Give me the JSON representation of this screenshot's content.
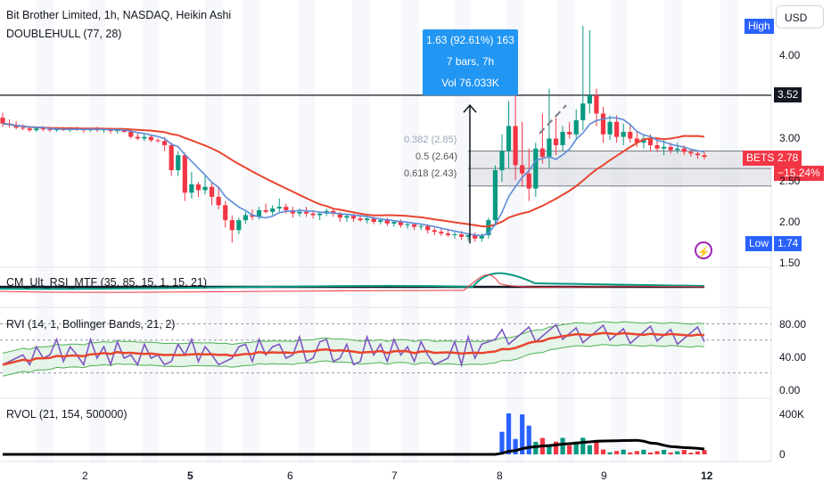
{
  "header": {
    "title": "Bit Brother Limited, 1h, NASDAQ, Heikin Ashi",
    "indicator": "DOUBLEHULL (77, 28)",
    "currency": "USD"
  },
  "price_axis": {
    "ticks": [
      "4.00",
      "3.00",
      "2.50",
      "2.00",
      "1.50"
    ],
    "high_label": "High",
    "low_label": "Low",
    "low_value": "1.74",
    "level_value": "3.52",
    "symbol_tag": "BETS",
    "last_price": "2.78",
    "change_pct": "−15.24%"
  },
  "measure_tooltip": {
    "line1": "1.63 (92.61%) 163",
    "line2": "7 bars, 7h",
    "line3": "Vol 76.033K"
  },
  "fibonacci": {
    "levels": [
      "0.382 (2.85)",
      "0.5 (2.64)",
      "0.618 (2.43)"
    ]
  },
  "panes": {
    "cm": "CM_Ult_RSI_MTF (35, 85, 15, 1, 15, 21)",
    "rvi": "RVI (14, 1, Bollinger Bands, 21, 2)",
    "rvi_ticks": [
      "80.00",
      "40.00",
      "0.00"
    ],
    "rvol": "RVOL (21, 154, 500000)",
    "rvol_ticks": [
      "400K",
      "0"
    ]
  },
  "time_axis": {
    "labels": [
      "2",
      "5",
      "6",
      "7",
      "8",
      "9",
      "12"
    ]
  },
  "colors": {
    "up": "#089981",
    "down": "#f23645",
    "blue_line": "#5b8dd9",
    "red_line": "#e8452e",
    "rvi_line": "#7e57c2",
    "bb_fill": "#e6f4ea",
    "accent_blue": "#2962ff"
  },
  "chart_data": {
    "type": "candlestick",
    "title": "Bit Brother Limited, 1h, NASDAQ, Heikin Ashi",
    "candles_ohlc": [
      [
        3.25,
        3.31,
        3.14,
        3.18
      ],
      [
        3.18,
        3.23,
        3.13,
        3.16
      ],
      [
        3.16,
        3.21,
        3.11,
        3.13
      ],
      [
        3.13,
        3.17,
        3.1,
        3.12
      ],
      [
        3.12,
        3.15,
        3.08,
        3.1
      ],
      [
        3.1,
        3.14,
        3.08,
        3.12
      ],
      [
        3.12,
        3.15,
        3.09,
        3.11
      ],
      [
        3.11,
        3.14,
        3.08,
        3.1
      ],
      [
        3.1,
        3.13,
        3.08,
        3.12
      ],
      [
        3.12,
        3.14,
        3.09,
        3.1
      ],
      [
        3.1,
        3.14,
        3.08,
        3.12
      ],
      [
        3.12,
        3.14,
        3.09,
        3.11
      ],
      [
        3.11,
        3.13,
        3.07,
        3.1
      ],
      [
        3.1,
        3.13,
        3.08,
        3.12
      ],
      [
        3.12,
        3.14,
        3.08,
        3.1
      ],
      [
        3.1,
        3.13,
        3.07,
        3.11
      ],
      [
        3.11,
        3.13,
        3.06,
        3.09
      ],
      [
        3.09,
        3.12,
        3.06,
        3.1
      ],
      [
        3.1,
        3.12,
        3.07,
        3.08
      ],
      [
        3.08,
        3.11,
        3.0,
        3.02
      ],
      [
        3.02,
        3.06,
        2.98,
        3.0
      ],
      [
        3.0,
        3.05,
        2.97,
        3.02
      ],
      [
        3.02,
        3.05,
        2.96,
        2.98
      ],
      [
        2.98,
        3.0,
        2.95,
        2.97
      ],
      [
        2.97,
        3.02,
        2.85,
        2.92
      ],
      [
        2.92,
        2.95,
        2.55,
        2.62
      ],
      [
        2.62,
        2.85,
        2.55,
        2.8
      ],
      [
        2.8,
        2.83,
        2.25,
        2.35
      ],
      [
        2.35,
        2.6,
        2.28,
        2.45
      ],
      [
        2.45,
        2.48,
        2.3,
        2.38
      ],
      [
        2.38,
        2.55,
        2.33,
        2.42
      ],
      [
        2.42,
        2.48,
        2.2,
        2.3
      ],
      [
        2.3,
        2.42,
        2.15,
        2.2
      ],
      [
        2.2,
        2.25,
        1.93,
        2.02
      ],
      [
        2.02,
        2.08,
        1.75,
        1.9
      ],
      [
        1.9,
        2.05,
        1.85,
        2.02
      ],
      [
        2.02,
        2.12,
        1.98,
        2.08
      ],
      [
        2.08,
        2.15,
        2.02,
        2.06
      ],
      [
        2.06,
        2.18,
        2.03,
        2.14
      ],
      [
        2.14,
        2.22,
        2.1,
        2.12
      ],
      [
        2.12,
        2.2,
        2.08,
        2.16
      ],
      [
        2.16,
        2.28,
        2.12,
        2.18
      ],
      [
        2.18,
        2.22,
        2.1,
        2.14
      ],
      [
        2.14,
        2.18,
        2.05,
        2.1
      ],
      [
        2.1,
        2.16,
        2.06,
        2.12
      ],
      [
        2.12,
        2.18,
        2.06,
        2.1
      ],
      [
        2.1,
        2.14,
        2.04,
        2.08
      ],
      [
        2.08,
        2.12,
        2.02,
        2.1
      ],
      [
        2.1,
        2.16,
        2.07,
        2.13
      ],
      [
        2.13,
        2.16,
        2.06,
        2.1
      ],
      [
        2.1,
        2.12,
        2.0,
        2.05
      ],
      [
        2.05,
        2.1,
        2.0,
        2.07
      ],
      [
        2.07,
        2.1,
        2.0,
        2.04
      ],
      [
        2.04,
        2.08,
        2.0,
        2.02
      ],
      [
        2.02,
        2.07,
        1.98,
        2.04
      ],
      [
        2.04,
        2.06,
        1.97,
        2.0
      ],
      [
        2.0,
        2.05,
        1.97,
        2.02
      ],
      [
        2.02,
        2.05,
        1.95,
        1.98
      ],
      [
        1.98,
        2.02,
        1.94,
        2.0
      ],
      [
        2.0,
        2.03,
        1.93,
        1.96
      ],
      [
        1.96,
        2.0,
        1.92,
        1.97
      ],
      [
        1.97,
        1.99,
        1.9,
        1.94
      ],
      [
        1.94,
        1.98,
        1.9,
        1.95
      ],
      [
        1.95,
        1.97,
        1.86,
        1.9
      ],
      [
        1.9,
        1.93,
        1.84,
        1.88
      ],
      [
        1.88,
        1.92,
        1.83,
        1.86
      ],
      [
        1.86,
        1.9,
        1.82,
        1.84
      ],
      [
        1.84,
        1.88,
        1.8,
        1.85
      ],
      [
        1.85,
        1.89,
        1.78,
        1.82
      ],
      [
        1.82,
        1.86,
        1.77,
        1.84
      ],
      [
        1.84,
        1.87,
        1.76,
        1.8
      ],
      [
        1.8,
        1.86,
        1.76,
        1.84
      ],
      [
        1.84,
        2.05,
        1.8,
        2.02
      ],
      [
        2.02,
        2.68,
        1.95,
        2.62
      ],
      [
        2.62,
        3.05,
        2.48,
        2.85
      ],
      [
        2.85,
        3.45,
        2.65,
        3.15
      ],
      [
        3.15,
        3.85,
        2.5,
        2.68
      ],
      [
        2.68,
        3.2,
        2.42,
        2.58
      ],
      [
        2.58,
        2.88,
        2.25,
        2.4
      ],
      [
        2.4,
        2.95,
        2.3,
        2.88
      ],
      [
        2.88,
        3.3,
        2.7,
        2.78
      ],
      [
        2.78,
        3.6,
        2.65,
        3.0
      ],
      [
        3.0,
        3.25,
        2.8,
        2.92
      ],
      [
        2.92,
        3.15,
        2.85,
        3.08
      ],
      [
        3.08,
        3.2,
        3.0,
        3.05
      ],
      [
        3.05,
        3.35,
        2.98,
        3.22
      ],
      [
        3.22,
        4.35,
        3.1,
        3.42
      ],
      [
        3.42,
        4.3,
        3.3,
        3.52
      ],
      [
        3.52,
        3.6,
        3.15,
        3.3
      ],
      [
        3.3,
        3.38,
        2.95,
        3.05
      ],
      [
        3.05,
        3.28,
        2.98,
        3.2
      ],
      [
        3.2,
        3.28,
        2.95,
        3.02
      ],
      [
        3.02,
        3.18,
        2.92,
        3.08
      ],
      [
        3.08,
        3.18,
        2.95,
        3.0
      ],
      [
        3.0,
        3.08,
        2.9,
        2.95
      ],
      [
        2.95,
        3.05,
        2.88,
        3.0
      ],
      [
        3.0,
        3.05,
        2.85,
        2.92
      ],
      [
        2.92,
        3.0,
        2.84,
        2.88
      ],
      [
        2.88,
        2.98,
        2.8,
        2.9
      ],
      [
        2.9,
        2.95,
        2.82,
        2.86
      ],
      [
        2.86,
        2.95,
        2.82,
        2.88
      ],
      [
        2.88,
        2.92,
        2.8,
        2.84
      ],
      [
        2.84,
        2.88,
        2.78,
        2.82
      ],
      [
        2.82,
        2.86,
        2.76,
        2.8
      ],
      [
        2.8,
        2.84,
        2.75,
        2.78
      ]
    ],
    "ylim": [
      1.5,
      4.4
    ],
    "annotations": {
      "horizontal_level": 3.52,
      "fib_382": 2.85,
      "fib_50": 2.64,
      "fib_618": 2.43,
      "high": 4.35,
      "low": 1.74
    }
  }
}
